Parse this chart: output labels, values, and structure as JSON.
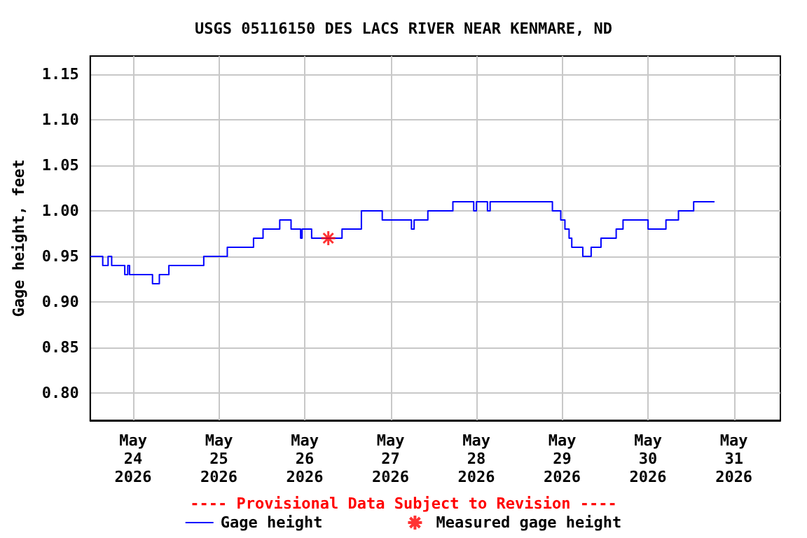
{
  "chart_data": {
    "type": "step",
    "title": "USGS 05116150 DES LACS RIVER NEAR KENMARE, ND",
    "ylabel": "Gage height, feet",
    "annotations": [
      "---- Provisional Data Subject to Revision ----"
    ],
    "xlim": [
      "2026-05-23T12:00",
      "2026-05-31T13:00"
    ],
    "xticks": [
      {
        "value": "2026-05-24",
        "label": "May\n24\n2026"
      },
      {
        "value": "2026-05-25",
        "label": "May\n25\n2026"
      },
      {
        "value": "2026-05-26",
        "label": "May\n26\n2026"
      },
      {
        "value": "2026-05-27",
        "label": "May\n27\n2026"
      },
      {
        "value": "2026-05-28",
        "label": "May\n28\n2026"
      },
      {
        "value": "2026-05-29",
        "label": "May\n29\n2026"
      },
      {
        "value": "2026-05-30",
        "label": "May\n30\n2026"
      },
      {
        "value": "2026-05-31",
        "label": "May\n31\n2026"
      }
    ],
    "ylim": [
      0.77,
      1.17
    ],
    "yticks": [
      {
        "value": 0.8,
        "label": "0.80"
      },
      {
        "value": 0.85,
        "label": "0.85"
      },
      {
        "value": 0.9,
        "label": "0.90"
      },
      {
        "value": 0.95,
        "label": "0.95"
      },
      {
        "value": 1.0,
        "label": "1.00"
      },
      {
        "value": 1.05,
        "label": "1.05"
      },
      {
        "value": 1.1,
        "label": "1.10"
      },
      {
        "value": 1.15,
        "label": "1.15"
      }
    ],
    "grid": true,
    "legend": "bottom",
    "line_style": "solid",
    "series": [
      {
        "name": "Gage height",
        "color": "#0000ff",
        "marker": "none",
        "x": [
          "2026-05-23T12:00",
          "2026-05-23T15:30",
          "2026-05-23T17:00",
          "2026-05-23T18:00",
          "2026-05-23T21:40",
          "2026-05-23T22:30",
          "2026-05-23T23:00",
          "2026-05-24T05:25",
          "2026-05-24T07:20",
          "2026-05-24T10:00",
          "2026-05-24T19:45",
          "2026-05-25T02:20",
          "2026-05-25T09:40",
          "2026-05-25T12:20",
          "2026-05-25T17:00",
          "2026-05-25T20:10",
          "2026-05-25T22:50",
          "2026-05-25T23:15",
          "2026-05-26T01:55",
          "2026-05-26T10:25",
          "2026-05-26T15:50",
          "2026-05-26T21:40",
          "2026-05-27T05:50",
          "2026-05-27T06:35",
          "2026-05-27T10:25",
          "2026-05-27T17:25",
          "2026-05-27T23:15",
          "2026-05-28T00:00",
          "2026-05-28T03:05",
          "2026-05-28T03:50",
          "2026-05-28T21:15",
          "2026-05-28T23:35",
          "2026-05-29T00:45",
          "2026-05-29T01:55",
          "2026-05-29T02:40",
          "2026-05-29T05:45",
          "2026-05-29T08:05",
          "2026-05-29T10:50",
          "2026-05-29T15:05",
          "2026-05-29T17:00",
          "2026-05-30T00:00",
          "2026-05-30T05:00",
          "2026-05-30T08:30",
          "2026-05-30T12:45",
          "2026-05-30T18:35"
        ],
        "values": [
          0.95,
          0.94,
          0.95,
          0.94,
          0.93,
          0.94,
          0.93,
          0.92,
          0.93,
          0.94,
          0.95,
          0.96,
          0.97,
          0.98,
          0.99,
          0.98,
          0.97,
          0.98,
          0.97,
          0.98,
          1.0,
          0.99,
          0.98,
          0.99,
          1.0,
          1.01,
          1.0,
          1.01,
          1.0,
          1.01,
          1.0,
          0.99,
          0.98,
          0.97,
          0.96,
          0.95,
          0.96,
          0.97,
          0.98,
          0.99,
          0.98,
          0.99,
          1.0,
          1.01,
          1.01
        ]
      },
      {
        "name": "Measured gage height",
        "type": "scatter",
        "color": "#ff0000",
        "marker": "cross",
        "x": [
          "2026-05-26T06:35"
        ],
        "values": [
          0.97
        ]
      }
    ]
  }
}
